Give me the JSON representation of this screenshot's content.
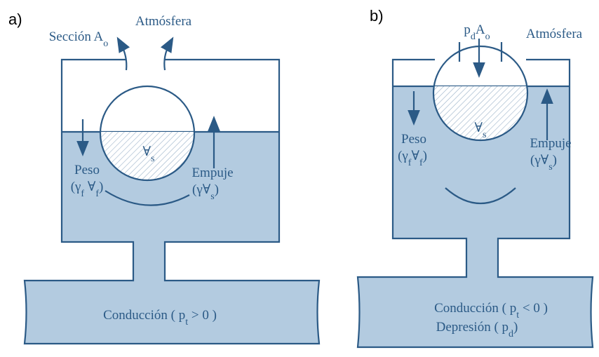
{
  "panels": [
    {
      "label": "a)",
      "section": [
        "Sección A",
        "o"
      ],
      "atmosphere": "Atmósfera",
      "volume": [
        "∀",
        "s"
      ],
      "weight": "Peso",
      "weight_formula": [
        "(γ",
        "f",
        " ∀",
        "f",
        ")"
      ],
      "buoyancy": "Empuje",
      "buoyancy_formula": [
        "(γ∀",
        "s",
        ")"
      ],
      "pipe": [
        [
          "Conducción ( p",
          "t",
          " > 0 )"
        ]
      ]
    },
    {
      "label": "b)",
      "section": [
        "p",
        "d",
        "A",
        "o"
      ],
      "atmosphere": "Atmósfera",
      "volume": [
        "∀",
        "s"
      ],
      "weight": "Peso",
      "weight_formula": [
        "(γ",
        "f",
        "∀",
        "f",
        ")"
      ],
      "buoyancy": "Empuje",
      "buoyancy_formula": [
        "(γ∀",
        "s",
        ")"
      ],
      "pipe": [
        [
          "Conducción ( p",
          "t",
          " < 0 )"
        ],
        [
          "Depresión ( p",
          "d",
          ")"
        ]
      ]
    }
  ]
}
